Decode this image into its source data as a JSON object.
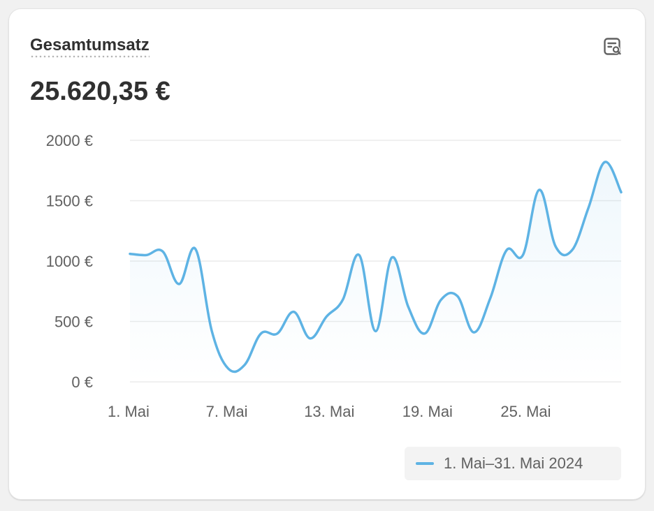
{
  "card": {
    "title": "Gesamtumsatz",
    "total": "25.620,35 €",
    "report_icon": "report-search-icon"
  },
  "colors": {
    "line": "#5eb3e4",
    "line_dark": "#4a9fd6",
    "grid": "#ebebeb",
    "axis_text": "#616161"
  },
  "chart_data": {
    "type": "line",
    "xlabel": "",
    "ylabel": "",
    "ylim": [
      0,
      2000
    ],
    "yticks": [
      0,
      500,
      1000,
      1500,
      2000
    ],
    "ytick_labels": [
      "0 €",
      "500 €",
      "1000 €",
      "1500 €",
      "2000 €"
    ],
    "x_tick_labels": [
      "1. Mai",
      "7. Mai",
      "13. Mai",
      "19. Mai",
      "25. Mai"
    ],
    "x_tick_days": [
      1,
      7,
      13,
      19,
      25
    ],
    "legend_position": "bottom-right",
    "grid": true,
    "series": [
      {
        "name": "1. Mai–31. Mai 2024",
        "x": [
          1,
          2,
          3,
          4,
          5,
          6,
          7,
          8,
          9,
          10,
          11,
          12,
          13,
          14,
          15,
          16,
          17,
          18,
          19,
          20,
          21,
          22,
          23,
          24,
          25,
          26,
          27,
          28,
          29,
          30,
          31
        ],
        "values": [
          1060,
          1050,
          1080,
          810,
          1100,
          420,
          110,
          140,
          400,
          400,
          580,
          360,
          540,
          680,
          1050,
          420,
          1030,
          620,
          400,
          680,
          710,
          410,
          690,
          1090,
          1050,
          1590,
          1120,
          1090,
          1440,
          1820,
          1570
        ]
      }
    ]
  }
}
